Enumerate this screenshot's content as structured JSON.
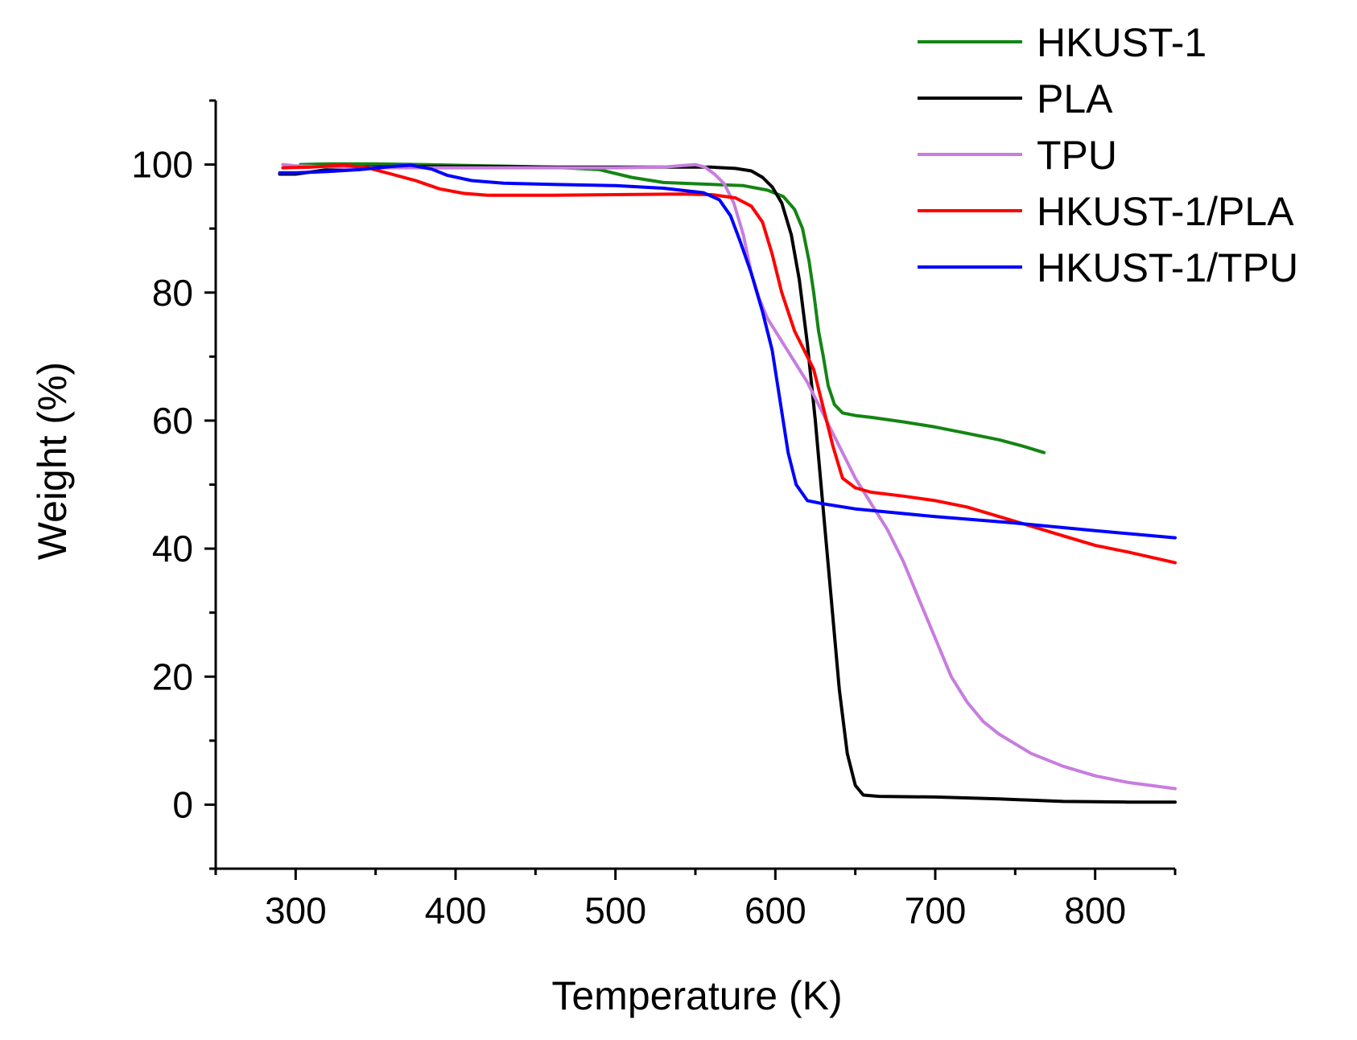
{
  "chart_data": {
    "type": "line",
    "title": "",
    "xlabel": "Temperature (K)",
    "ylabel": "Weight (%)",
    "xlim": [
      250,
      850
    ],
    "ylim": [
      -10,
      110
    ],
    "xticks": [
      300,
      400,
      500,
      600,
      700,
      800
    ],
    "yticks": [
      0,
      20,
      40,
      60,
      80,
      100
    ],
    "grid": false,
    "legend_position": "top-right",
    "series": [
      {
        "name": "HKUST-1",
        "color": "#138513",
        "points": [
          [
            303,
            100
          ],
          [
            320,
            100.1
          ],
          [
            350,
            100.1
          ],
          [
            380,
            100
          ],
          [
            420,
            99.8
          ],
          [
            460,
            99.6
          ],
          [
            490,
            99.2
          ],
          [
            510,
            98
          ],
          [
            530,
            97.2
          ],
          [
            560,
            96.9
          ],
          [
            580,
            96.7
          ],
          [
            595,
            96
          ],
          [
            605,
            95
          ],
          [
            612,
            93
          ],
          [
            617,
            90
          ],
          [
            621,
            85
          ],
          [
            624,
            80
          ],
          [
            627,
            74
          ],
          [
            630,
            70
          ],
          [
            633,
            65.5
          ],
          [
            637,
            62.5
          ],
          [
            642,
            61.2
          ],
          [
            650,
            60.8
          ],
          [
            660,
            60.5
          ],
          [
            680,
            59.8
          ],
          [
            700,
            59
          ],
          [
            720,
            58
          ],
          [
            740,
            57
          ],
          [
            755,
            56
          ],
          [
            768,
            55
          ]
        ]
      },
      {
        "name": "PLA",
        "color": "#000000",
        "points": [
          [
            290,
            98.5
          ],
          [
            300,
            98.5
          ],
          [
            320,
            99.2
          ],
          [
            340,
            99.6
          ],
          [
            380,
            99.7
          ],
          [
            420,
            99.7
          ],
          [
            460,
            99.6
          ],
          [
            500,
            99.6
          ],
          [
            540,
            99.6
          ],
          [
            560,
            99.6
          ],
          [
            575,
            99.4
          ],
          [
            585,
            99
          ],
          [
            592,
            98
          ],
          [
            598,
            96.5
          ],
          [
            604,
            94
          ],
          [
            610,
            89
          ],
          [
            615,
            82
          ],
          [
            620,
            72
          ],
          [
            625,
            60
          ],
          [
            630,
            46
          ],
          [
            635,
            32
          ],
          [
            640,
            18
          ],
          [
            645,
            8
          ],
          [
            650,
            3
          ],
          [
            655,
            1.5
          ],
          [
            665,
            1.3
          ],
          [
            700,
            1.2
          ],
          [
            740,
            0.9
          ],
          [
            780,
            0.5
          ],
          [
            820,
            0.4
          ],
          [
            850,
            0.4
          ]
        ]
      },
      {
        "name": "TPU",
        "color": "#c77ddf",
        "points": [
          [
            292,
            100
          ],
          [
            300,
            99.8
          ],
          [
            340,
            99.5
          ],
          [
            380,
            99.5
          ],
          [
            420,
            99.5
          ],
          [
            460,
            99.5
          ],
          [
            500,
            99.5
          ],
          [
            530,
            99.6
          ],
          [
            545,
            99.9
          ],
          [
            550,
            100
          ],
          [
            556,
            99.6
          ],
          [
            562,
            98.5
          ],
          [
            568,
            97
          ],
          [
            574,
            94
          ],
          [
            580,
            89
          ],
          [
            585,
            83
          ],
          [
            590,
            79
          ],
          [
            595,
            76
          ],
          [
            600,
            74
          ],
          [
            610,
            70
          ],
          [
            620,
            66
          ],
          [
            630,
            61
          ],
          [
            640,
            56
          ],
          [
            650,
            51
          ],
          [
            660,
            47
          ],
          [
            670,
            43
          ],
          [
            680,
            38
          ],
          [
            690,
            32
          ],
          [
            700,
            26
          ],
          [
            710,
            20
          ],
          [
            720,
            16
          ],
          [
            730,
            13
          ],
          [
            740,
            11
          ],
          [
            760,
            8
          ],
          [
            780,
            6
          ],
          [
            800,
            4.5
          ],
          [
            820,
            3.5
          ],
          [
            850,
            2.5
          ]
        ]
      },
      {
        "name": "HKUST-1/PLA",
        "color": "#ff0000",
        "points": [
          [
            292,
            99.5
          ],
          [
            310,
            99.6
          ],
          [
            330,
            99.9
          ],
          [
            345,
            99.5
          ],
          [
            360,
            98.5
          ],
          [
            375,
            97.5
          ],
          [
            390,
            96.2
          ],
          [
            405,
            95.5
          ],
          [
            420,
            95.2
          ],
          [
            460,
            95.2
          ],
          [
            500,
            95.3
          ],
          [
            540,
            95.4
          ],
          [
            560,
            95.3
          ],
          [
            575,
            94.8
          ],
          [
            585,
            93.5
          ],
          [
            592,
            91
          ],
          [
            598,
            86
          ],
          [
            604,
            80
          ],
          [
            612,
            74
          ],
          [
            618,
            71
          ],
          [
            624,
            68
          ],
          [
            630,
            62
          ],
          [
            636,
            56
          ],
          [
            642,
            51
          ],
          [
            650,
            49.5
          ],
          [
            660,
            48.8
          ],
          [
            680,
            48.2
          ],
          [
            700,
            47.5
          ],
          [
            720,
            46.5
          ],
          [
            740,
            45
          ],
          [
            760,
            43.5
          ],
          [
            780,
            42
          ],
          [
            800,
            40.5
          ],
          [
            820,
            39.5
          ],
          [
            850,
            37.8
          ]
        ]
      },
      {
        "name": "HKUST-1/TPU",
        "color": "#0000ff",
        "points": [
          [
            290,
            98.7
          ],
          [
            300,
            98.7
          ],
          [
            320,
            98.9
          ],
          [
            340,
            99.2
          ],
          [
            360,
            99.7
          ],
          [
            372,
            99.9
          ],
          [
            385,
            99.3
          ],
          [
            395,
            98.3
          ],
          [
            410,
            97.5
          ],
          [
            430,
            97.1
          ],
          [
            460,
            96.9
          ],
          [
            500,
            96.7
          ],
          [
            530,
            96.3
          ],
          [
            555,
            95.6
          ],
          [
            565,
            94.5
          ],
          [
            572,
            92
          ],
          [
            578,
            88
          ],
          [
            585,
            83
          ],
          [
            592,
            77
          ],
          [
            598,
            71
          ],
          [
            603,
            63
          ],
          [
            608,
            55
          ],
          [
            613,
            50
          ],
          [
            620,
            47.5
          ],
          [
            630,
            47
          ],
          [
            650,
            46.2
          ],
          [
            700,
            45
          ],
          [
            750,
            44
          ],
          [
            800,
            42.8
          ],
          [
            850,
            41.7
          ]
        ]
      }
    ]
  }
}
